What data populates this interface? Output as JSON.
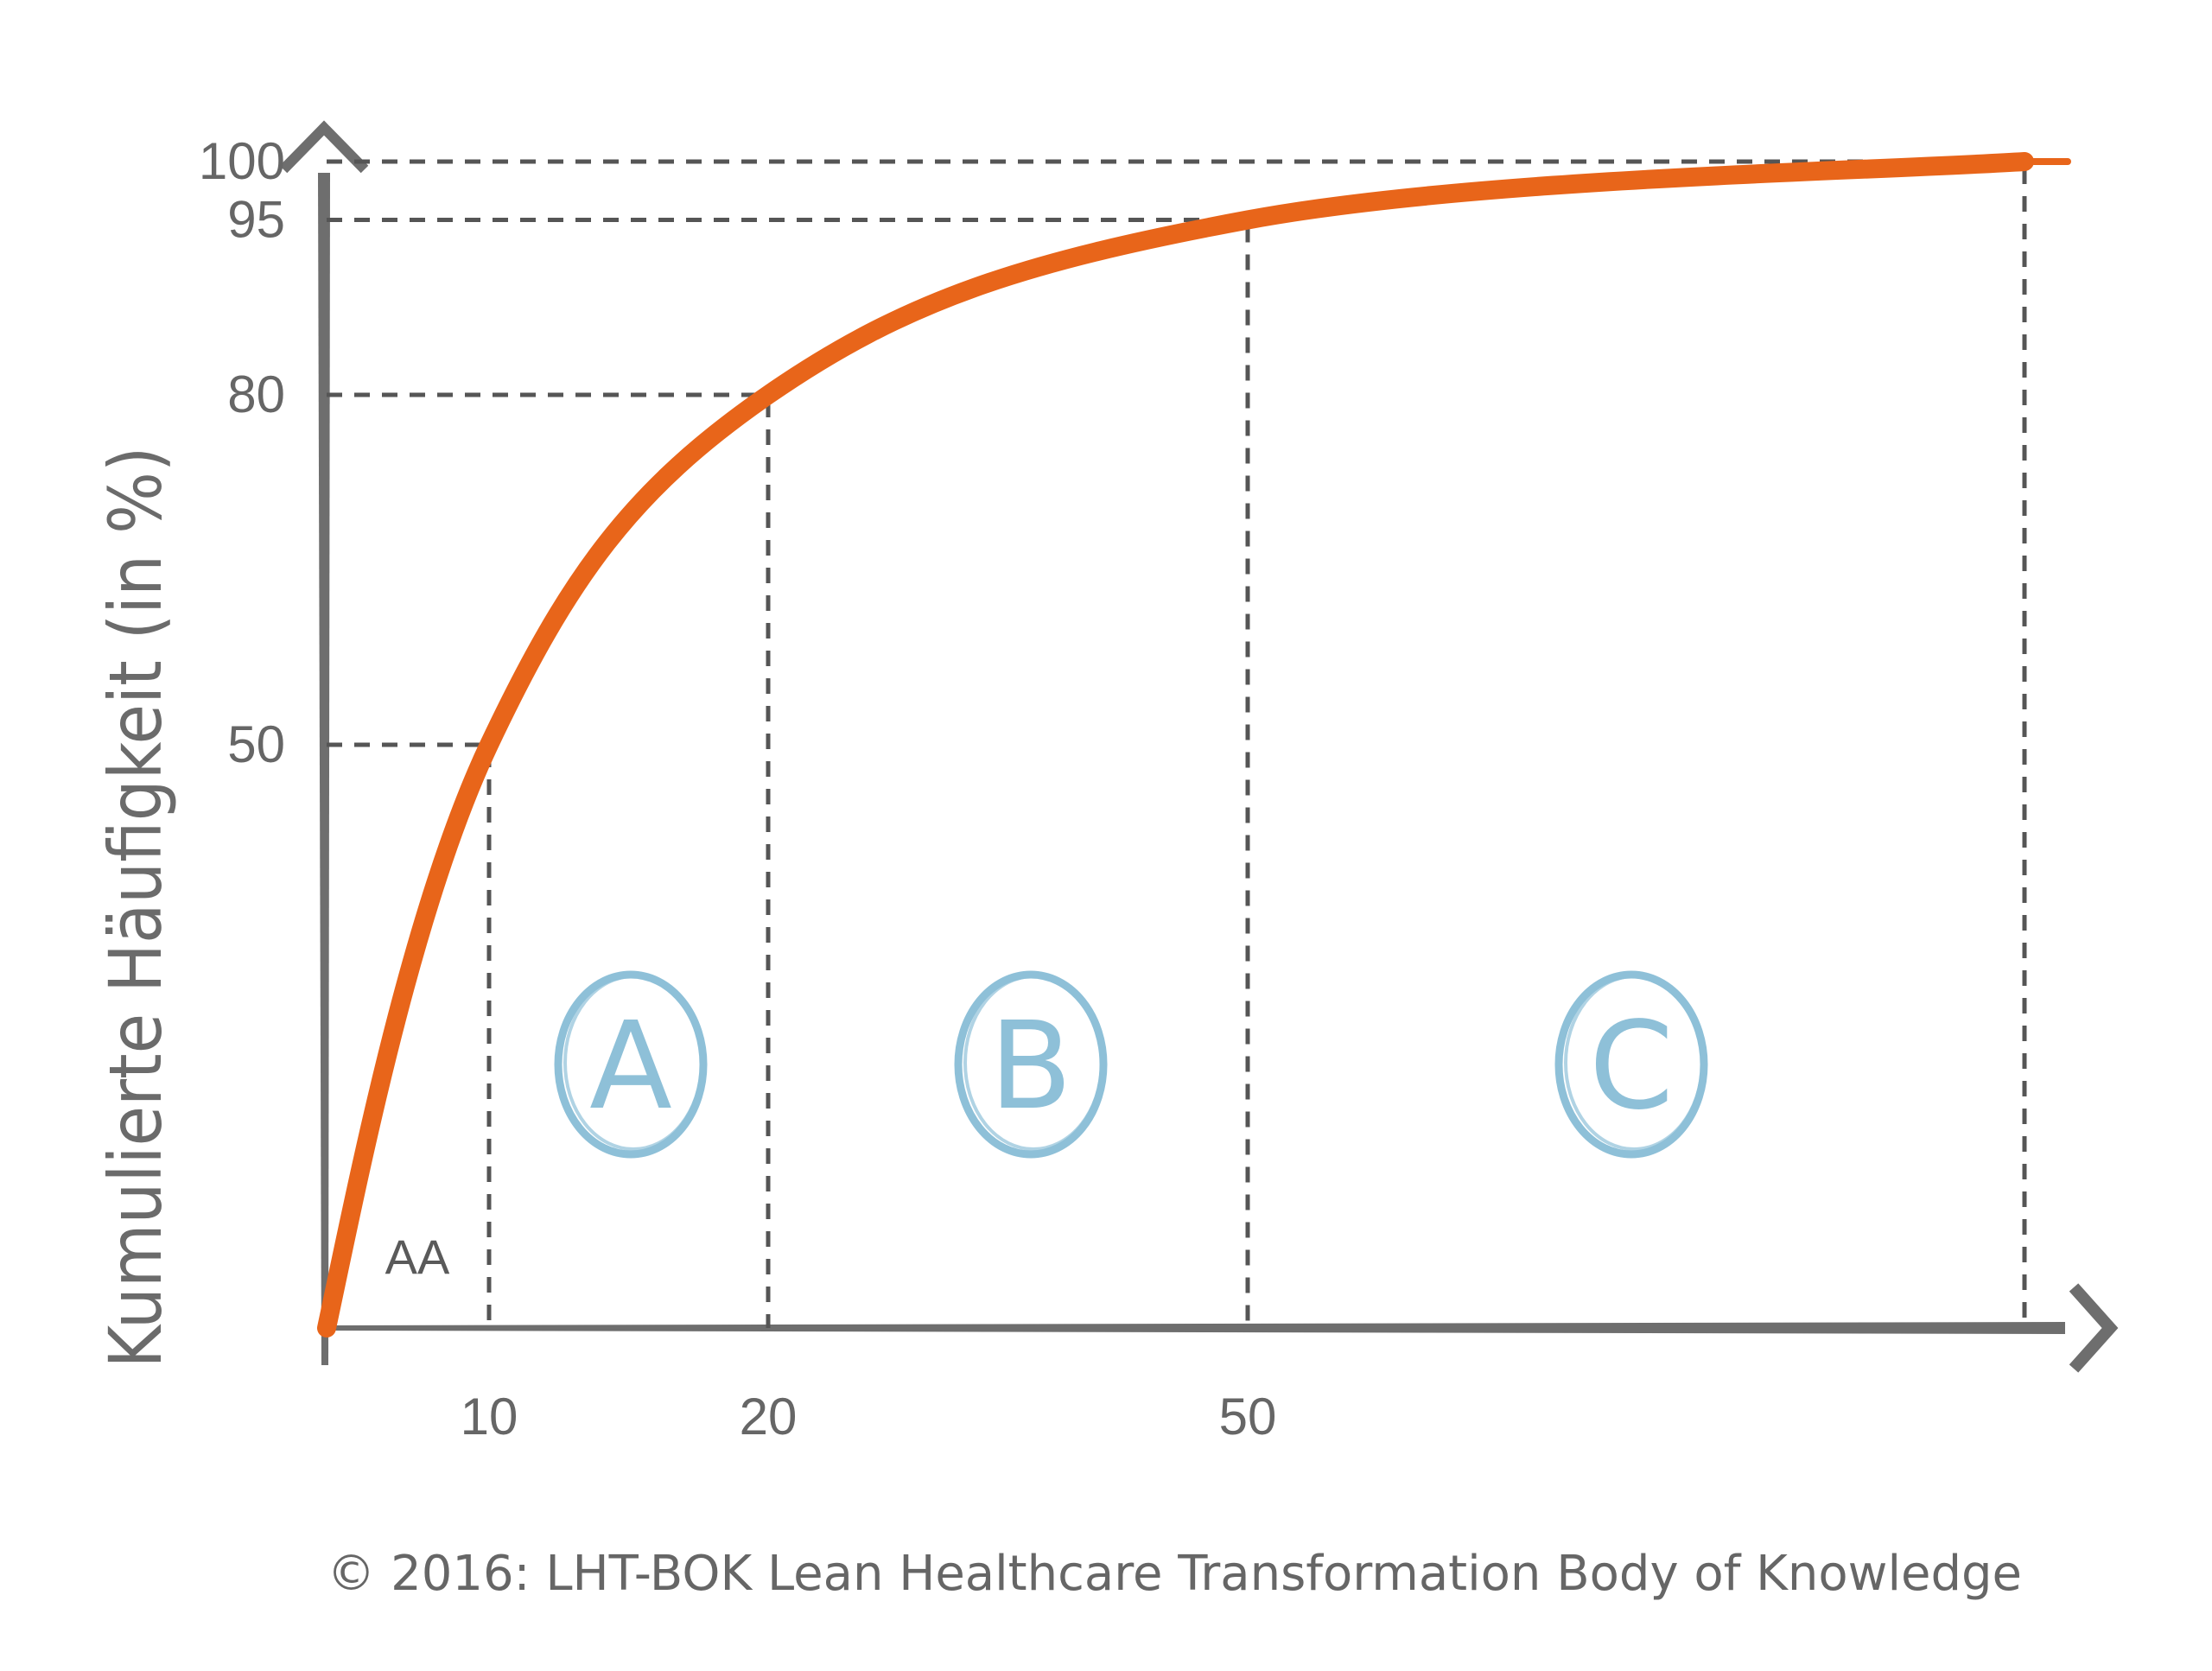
{
  "chart_data": {
    "type": "line",
    "ylabel": "Kumulierte Häufigkeit (in %)",
    "y_ticks": [
      50,
      80,
      95,
      100
    ],
    "x_ticks": [
      10,
      20,
      50
    ],
    "ylim": [
      0,
      100
    ],
    "series": [
      {
        "color": "#e8651a",
        "points": [
          [
            0,
            0
          ],
          [
            10,
            50
          ],
          [
            20,
            80
          ],
          [
            50,
            95
          ],
          [
            100,
            100
          ]
        ]
      }
    ],
    "x_guides": [
      10,
      20,
      50,
      100
    ],
    "y_guides": [
      50,
      80,
      95,
      100
    ],
    "zones": [
      {
        "label": "A",
        "from": 10,
        "to": 20
      },
      {
        "label": "B",
        "from": 20,
        "to": 50
      },
      {
        "label": "C",
        "from": 50,
        "to": 100
      }
    ],
    "annotations": [
      {
        "text": "AA",
        "zone_from": 0,
        "zone_to": 10
      }
    ],
    "grid": false,
    "colors": {
      "curve": "#e8651a",
      "zone_letters": "#8ec0d8",
      "axes": "#6e6e6e",
      "guides": "#555555"
    }
  },
  "footer": {
    "copyright": "© 2016: LHT-BOK Lean Healthcare Transformation Body of Knowledge"
  }
}
